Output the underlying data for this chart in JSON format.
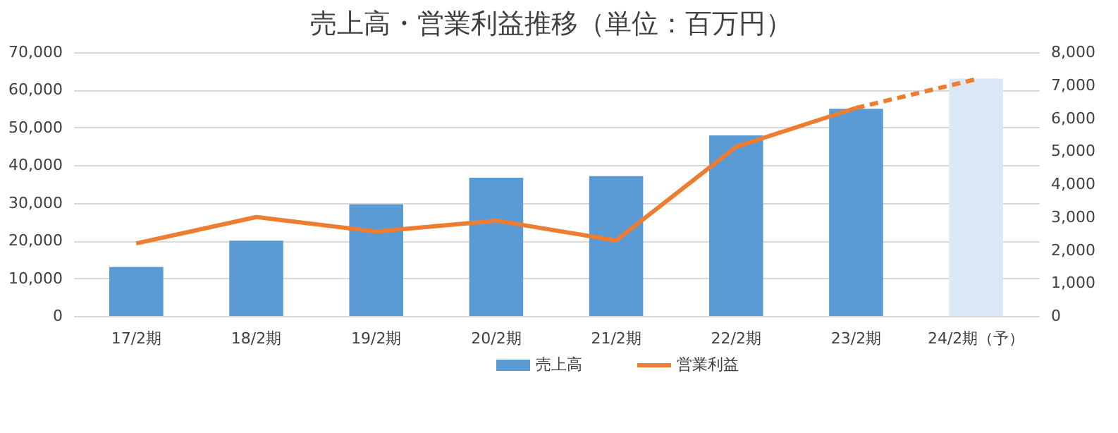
{
  "chart_data": {
    "type": "bar",
    "title": "売上高・営業利益推移（単位：百万円）",
    "categories": [
      "17/2期",
      "18/2期",
      "19/2期",
      "20/2期",
      "21/2期",
      "22/2期",
      "23/2期",
      "24/2期（予）"
    ],
    "series": [
      {
        "name": "売上高",
        "color": "#5b9bd5",
        "colors": [
          "#5b9bd5",
          "#5b9bd5",
          "#5b9bd5",
          "#5b9bd5",
          "#5b9bd5",
          "#5b9bd5",
          "#5b9bd5",
          "#dae8f5"
        ],
        "values": [
          13000,
          20000,
          29600,
          36700,
          37100,
          47900,
          55000,
          63000
        ]
      },
      {
        "name": "営業利益",
        "type": "line",
        "axis": "y2",
        "color": "#ed7d31",
        "line_style": "solid",
        "values": [
          2200,
          3000,
          2560,
          2890,
          2290,
          5130,
          6310,
          null
        ]
      },
      {
        "type": "line",
        "axis": "y2",
        "color": "#ed7d31",
        "line_style": "dashed",
        "values": [
          null,
          null,
          null,
          null,
          null,
          null,
          6310,
          7180
        ]
      }
    ],
    "ylim": [
      0,
      70000
    ],
    "yticks": [
      0,
      {
        "value": 10000,
        "label": "10,000"
      },
      {
        "value": 20000,
        "label": "20,000"
      },
      {
        "value": 30000,
        "label": "30,000"
      },
      {
        "value": 40000,
        "label": "40,000"
      },
      {
        "value": 50000,
        "label": "50,000"
      },
      {
        "value": 60000,
        "label": "60,000"
      },
      {
        "value": 70000,
        "label": "70,000"
      }
    ],
    "y2lim": [
      0,
      8000
    ],
    "y2ticks": [
      0,
      {
        "value": 1000,
        "label": "1,000"
      },
      {
        "value": 2000,
        "label": "2,000"
      },
      {
        "value": 3000,
        "label": "3,000"
      },
      {
        "value": 4000,
        "label": "4,000"
      },
      {
        "value": 5000,
        "label": "5,000"
      },
      {
        "value": 6000,
        "label": "6,000"
      },
      {
        "value": 7000,
        "label": "7,000"
      },
      {
        "value": 8000,
        "label": "8,000"
      }
    ],
    "grid": "y",
    "legend": "bottom",
    "marker": "none"
  }
}
